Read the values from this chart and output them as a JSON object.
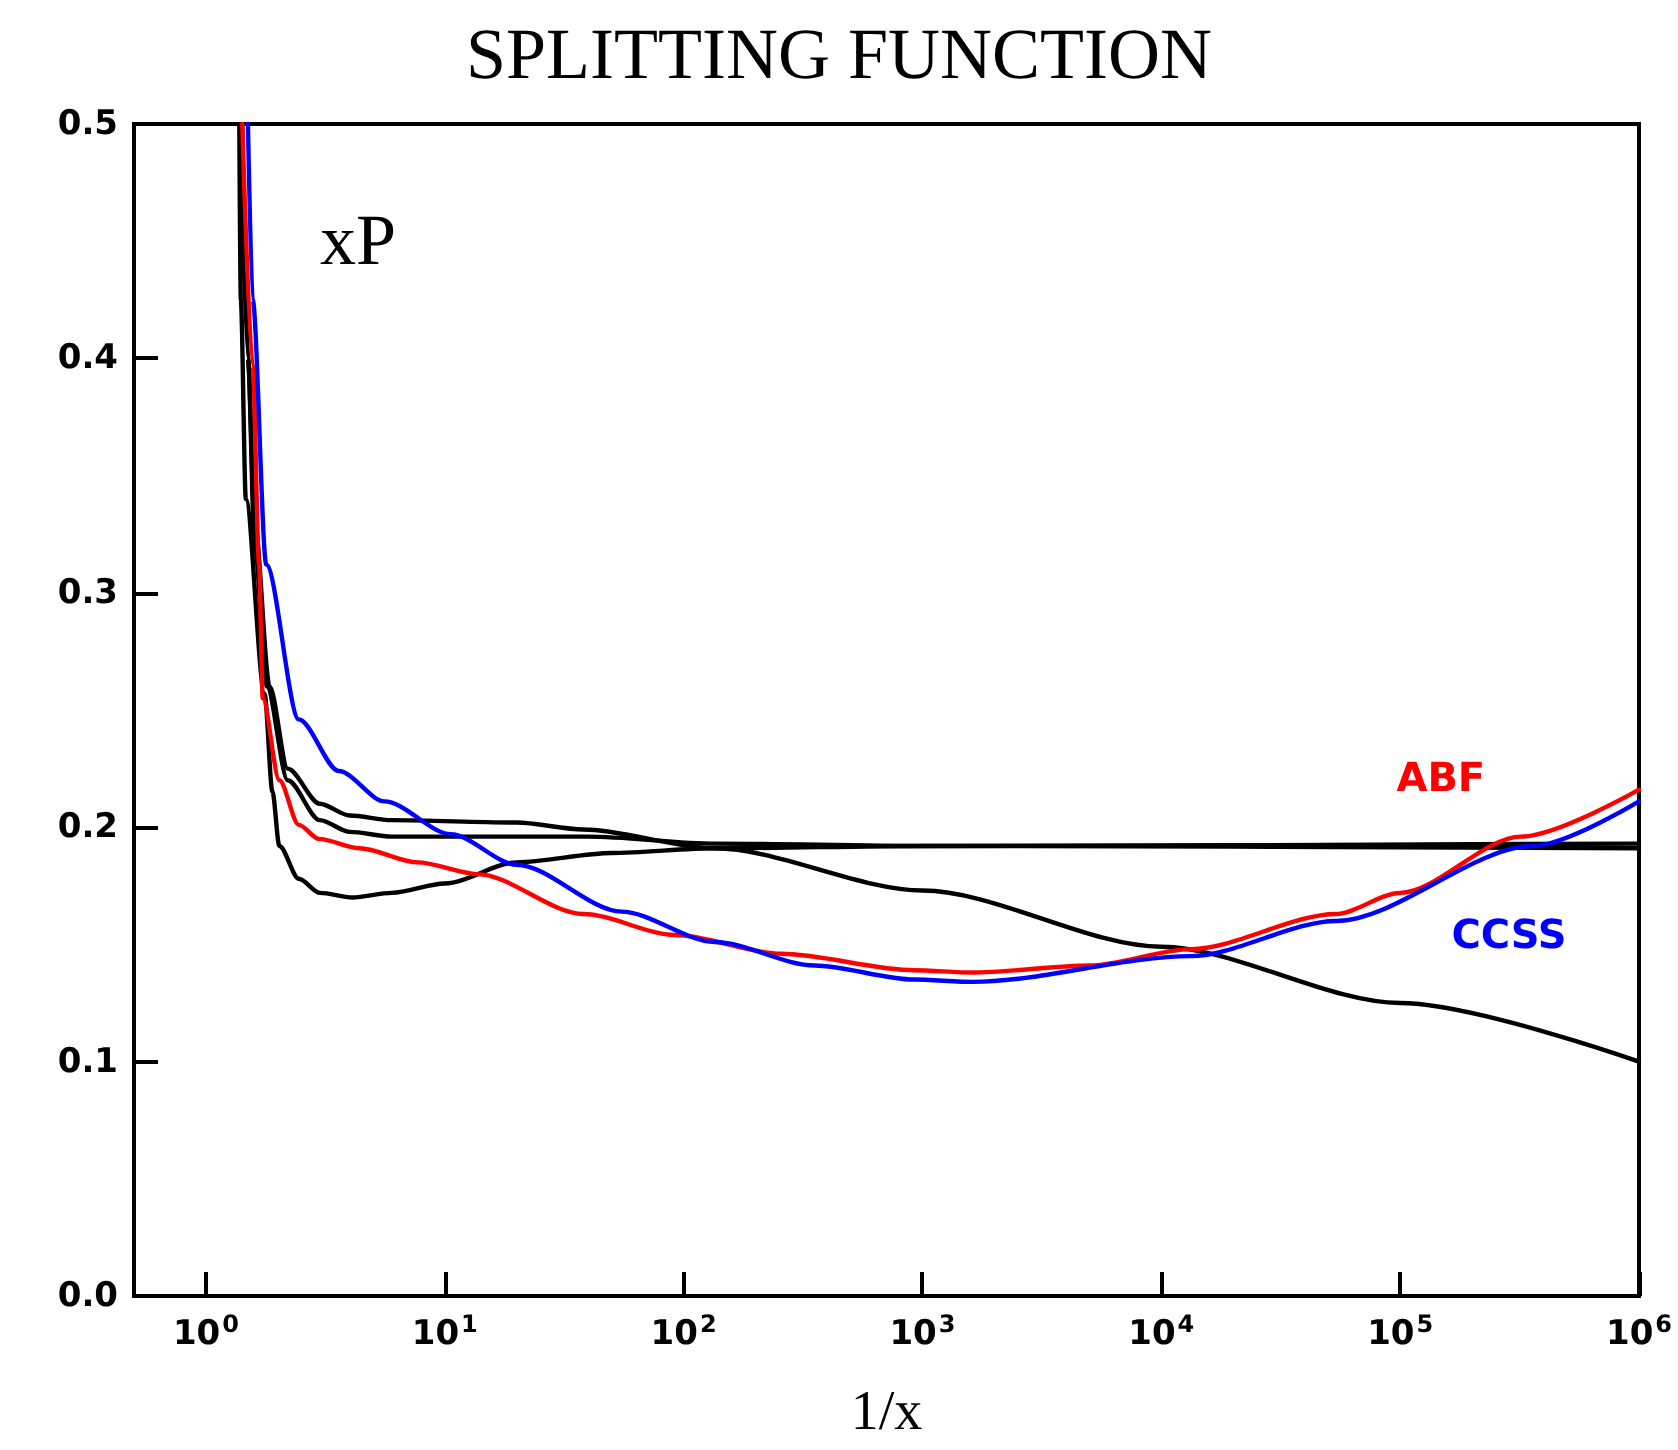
{
  "chart_data": {
    "type": "line",
    "title": "SPLITTING FUNCTION",
    "xlabel": "1/x",
    "log": "x",
    "marker": "none",
    "grid": false,
    "legend": false,
    "xlim": [
      0.5,
      1000000
    ],
    "ylim": [
      0,
      0.5
    ],
    "xticks": [
      {
        "value": 1,
        "label": "10$^{0}$"
      },
      {
        "value": 10,
        "label": "10$^{1}$"
      },
      {
        "value": 100,
        "label": "10$^{2}$"
      },
      {
        "value": 1000,
        "label": "10$^{3}$"
      },
      {
        "value": 10000,
        "label": "10$^{4}$"
      },
      {
        "value": 100000,
        "label": "10$^{5}$"
      },
      {
        "value": 1000000,
        "label": "10$^{6}$"
      }
    ],
    "yticks": [
      {
        "value": 0,
        "label": "0.0"
      },
      {
        "value": 0.1,
        "label": "0.1"
      },
      {
        "value": 0.2,
        "label": "0.2"
      },
      {
        "value": 0.3,
        "label": "0.3"
      },
      {
        "value": 0.4,
        "label": "0.4"
      },
      {
        "value": 0.5,
        "label": "0.5"
      }
    ],
    "annotations": [
      "xP"
    ],
    "series": [
      {
        "color": "#000000",
        "x": [
          1.38,
          1.4,
          1.47,
          1.76,
          1.9,
          2.03,
          2.45,
          3,
          4.1,
          6,
          10,
          20,
          50,
          135,
          1000,
          1000000
        ],
        "values": [
          0.5,
          0.425,
          0.34,
          0.257,
          0.215,
          0.192,
          0.178,
          0.172,
          0.17,
          0.172,
          0.176,
          0.185,
          0.189,
          0.191,
          0.192,
          0.193
        ]
      },
      {
        "color": "#000000",
        "x": [
          1.39,
          1.5,
          1.6,
          1.85,
          2.2,
          3,
          4,
          6,
          20,
          38,
          135,
          1000,
          10000,
          100000,
          1000000
        ],
        "values": [
          0.5,
          0.4,
          0.33,
          0.26,
          0.225,
          0.21,
          0.205,
          0.203,
          0.202,
          0.199,
          0.191,
          0.173,
          0.149,
          0.125,
          0.1
        ]
      },
      {
        "color": "#000000",
        "x": [
          1.42,
          1.5,
          1.6,
          1.8,
          2.2,
          3,
          4,
          6,
          40,
          135,
          1000,
          1000000
        ],
        "values": [
          0.5,
          0.4,
          0.32,
          0.26,
          0.22,
          0.203,
          0.198,
          0.196,
          0.196,
          0.193,
          0.192,
          0.191
        ]
      },
      {
        "name": "ABF",
        "color": "#ff0000",
        "x": [
          1.42,
          1.57,
          1.67,
          1.73,
          2.03,
          2.45,
          2.97,
          4.4,
          7.7,
          13.7,
          38,
          92,
          256,
          920,
          1630,
          5000,
          13300,
          54000,
          100000,
          320000,
          1000000
        ],
        "values": [
          0.5,
          0.397,
          0.312,
          0.255,
          0.22,
          0.201,
          0.195,
          0.191,
          0.185,
          0.18,
          0.163,
          0.154,
          0.146,
          0.139,
          0.138,
          0.141,
          0.148,
          0.163,
          0.172,
          0.196,
          0.216
        ]
      },
      {
        "name": "CCSS",
        "color": "#0000ff",
        "x": [
          1.5,
          1.57,
          1.79,
          2.45,
          3.6,
          5.6,
          10.6,
          20,
          55,
          135,
          353,
          920,
          1630,
          13300,
          54000,
          360000,
          1000000
        ],
        "values": [
          0.5,
          0.425,
          0.312,
          0.246,
          0.224,
          0.211,
          0.197,
          0.184,
          0.164,
          0.151,
          0.141,
          0.135,
          0.134,
          0.145,
          0.16,
          0.192,
          0.211
        ]
      }
    ]
  }
}
